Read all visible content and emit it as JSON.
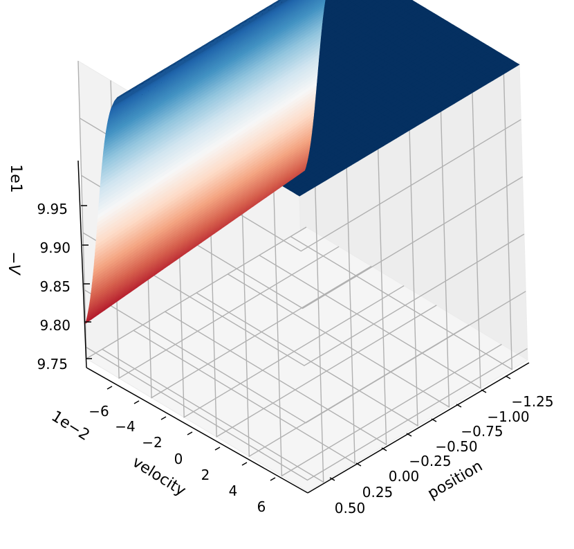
{
  "chart_data": {
    "type": "surface",
    "title": "",
    "colormap": "RdBu",
    "zlabel": "−V",
    "xlabel": "position",
    "ylabel": "velocity",
    "z_offset_label": "1e1",
    "y_offset_label": "1e−2",
    "position_ticks": [
      "−1.25",
      "−1.00",
      "−0.75",
      "−0.50",
      "−0.25",
      "0.00",
      "0.25",
      "0.50"
    ],
    "velocity_ticks": [
      "−6",
      "−4",
      "−2",
      "0",
      "2",
      "4",
      "6"
    ],
    "z_ticks": [
      "9.75",
      "9.80",
      "9.85",
      "9.90",
      "9.95"
    ],
    "xlim": [
      -1.2,
      0.5
    ],
    "ylim": [
      -0.07,
      0.07
    ],
    "zlim": [
      97.4,
      100.0
    ],
    "surface_corner_values": {
      "position_-1.2": 99.98,
      "position_0.5_velocity_-0.07": 97.45,
      "position_0.5_velocity_0.07": 97.66
    }
  }
}
